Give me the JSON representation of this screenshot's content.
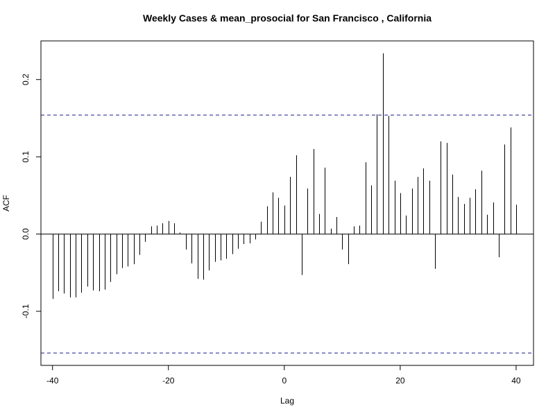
{
  "chart_data": {
    "type": "bar",
    "title": "Weekly Cases & mean_prosocial for San Francisco , California",
    "xlabel": "Lag",
    "ylabel": "ACF",
    "xlim": [
      -42,
      43
    ],
    "ylim": [
      -0.17,
      0.25
    ],
    "x_ticks": [
      -40,
      -20,
      0,
      20,
      40
    ],
    "x_tick_labels": [
      "-40",
      "-20",
      "0",
      "20",
      "40"
    ],
    "y_ticks": [
      -0.1,
      0.0,
      0.1,
      0.2
    ],
    "y_tick_labels": [
      "-0.1",
      "0.0",
      "0.1",
      "0.2"
    ],
    "confidence_band": [
      0.154,
      -0.154
    ],
    "band_color": "#1a1a8c",
    "line_color": "#000000",
    "lags": [
      -40,
      -39,
      -38,
      -37,
      -36,
      -35,
      -34,
      -33,
      -32,
      -31,
      -30,
      -29,
      -28,
      -27,
      -26,
      -25,
      -24,
      -23,
      -22,
      -21,
      -20,
      -19,
      -18,
      -17,
      -16,
      -15,
      -14,
      -13,
      -12,
      -11,
      -10,
      -9,
      -8,
      -7,
      -6,
      -5,
      -4,
      -3,
      -2,
      -1,
      0,
      1,
      2,
      3,
      4,
      5,
      6,
      7,
      8,
      9,
      10,
      11,
      12,
      13,
      14,
      15,
      16,
      17,
      18,
      19,
      20,
      21,
      22,
      23,
      24,
      25,
      26,
      27,
      28,
      29,
      30,
      31,
      32,
      33,
      34,
      35,
      36,
      37,
      38,
      39,
      40
    ],
    "values": [
      -0.084,
      -0.074,
      -0.077,
      -0.082,
      -0.082,
      -0.076,
      -0.068,
      -0.073,
      -0.074,
      -0.072,
      -0.062,
      -0.052,
      -0.044,
      -0.042,
      -0.039,
      -0.027,
      -0.01,
      0.01,
      0.011,
      0.014,
      0.017,
      0.014,
      0.002,
      -0.02,
      -0.038,
      -0.058,
      -0.059,
      -0.047,
      -0.036,
      -0.034,
      -0.032,
      -0.026,
      -0.019,
      -0.013,
      -0.012,
      -0.007,
      0.016,
      0.036,
      0.054,
      0.047,
      0.037,
      0.074,
      0.102,
      -0.053,
      0.059,
      0.11,
      0.026,
      0.086,
      0.007,
      0.022,
      -0.02,
      -0.039,
      0.01,
      0.011,
      0.093,
      0.063,
      0.155,
      0.234,
      0.153,
      0.069,
      0.053,
      0.024,
      0.059,
      0.074,
      0.085,
      0.069,
      -0.045,
      0.12,
      0.118,
      0.077,
      0.048,
      0.039,
      0.047,
      0.058,
      0.082,
      0.025,
      0.041,
      -0.03,
      0.116,
      0.138,
      0.038
    ]
  }
}
